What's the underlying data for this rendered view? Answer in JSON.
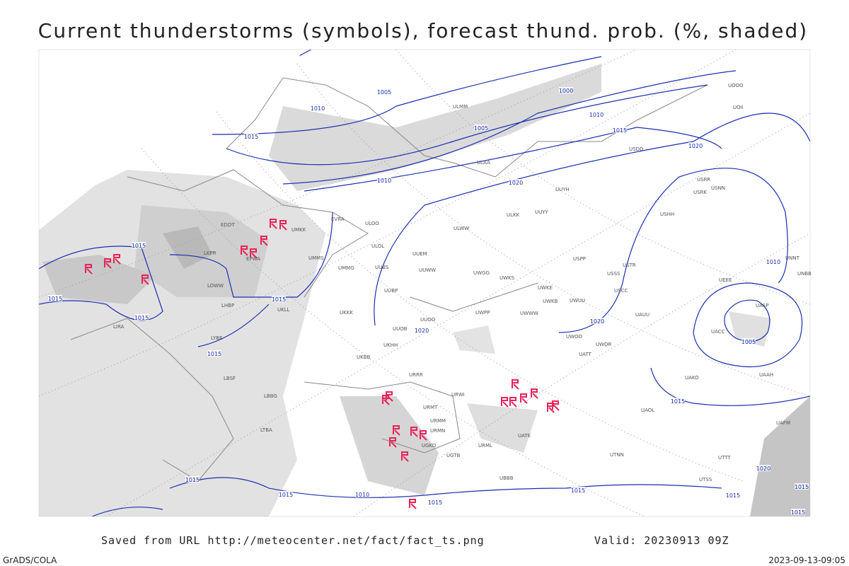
{
  "header": {
    "title": "Current thunderstorms (symbols), forecast thund. prob. (%, shaded)"
  },
  "footer": {
    "source": "Saved from URL http://meteocenter.net/fact/fact_ts.png",
    "valid": "Valid: 20230913 09Z",
    "software": "GrADS/COLA",
    "timestamp": "2023-09-13-09:05"
  },
  "isobar_labels": [
    "1005",
    "1010",
    "1015",
    "1000",
    "1010",
    "1005",
    "1015",
    "1020",
    "1010",
    "1020",
    "1015",
    "1015",
    "1015",
    "1015",
    "1020",
    "1020",
    "1015",
    "1010",
    "1005",
    "1015",
    "1015",
    "1015",
    "1010",
    "1015",
    "1015",
    "1020",
    "1015",
    "1015",
    "1015"
  ],
  "station_labels": [
    "EDDT",
    "UMKK",
    "EVRA",
    "ULOO",
    "ULOL",
    "UUEM",
    "ULWW",
    "ULKK",
    "UUYY",
    "UUYH",
    "EPWA",
    "UMMS",
    "UMMG",
    "UUBS",
    "UUBP",
    "UUWW",
    "UWGG",
    "UWKS",
    "USPP",
    "USSS",
    "USTR",
    "USCC",
    "UKLL",
    "UKKK",
    "UUOO",
    "UWPP",
    "UWWW",
    "UWKE",
    "UWKB",
    "UWUU",
    "UWOO",
    "UWOR",
    "UATT",
    "UAUU",
    "UACC",
    "UASP",
    "UKBB",
    "URRR",
    "URWI",
    "URMT",
    "URMM",
    "URMN",
    "UGKO",
    "UGTB",
    "UBBB",
    "UATE",
    "URML",
    "UTNN",
    "UAOL",
    "UAKO",
    "UAAH",
    "UUOB",
    "UKHH",
    "LIRA",
    "LKPR",
    "LOWW",
    "LHBP",
    "LYBE",
    "LBSF",
    "LBBG",
    "LTBA",
    "ULAA",
    "ULMM",
    "USDD",
    "USRR",
    "USRK",
    "USNN",
    "USHH",
    "UNNT",
    "UNBB",
    "UOOO",
    "UOII",
    "UEEE",
    "UTTT",
    "UTSS",
    "UAFM"
  ]
}
